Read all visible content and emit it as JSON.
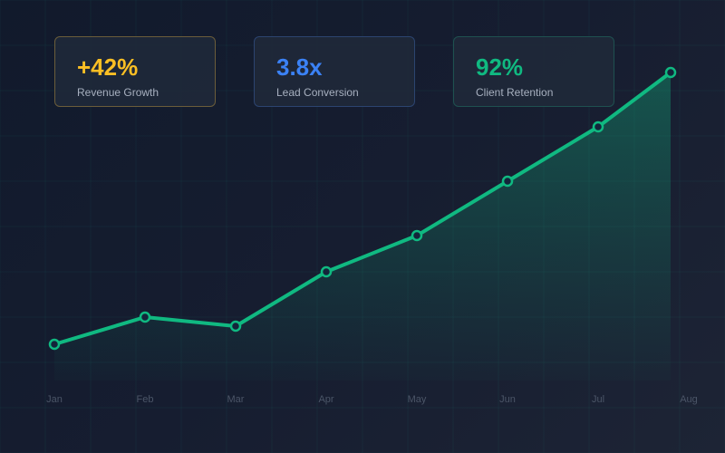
{
  "cards": [
    {
      "value": "+42%",
      "label": "Revenue Growth",
      "color": "#fbbf24",
      "border": "#6b5d3a"
    },
    {
      "value": "3.8x",
      "label": "Lead Conversion",
      "color": "#3b82f6",
      "border": "#2c4470"
    },
    {
      "value": "92%",
      "label": "Client Retention",
      "color": "#10b981",
      "border": "#1f5150"
    }
  ],
  "chart_data": {
    "type": "area",
    "title": "",
    "xlabel": "",
    "ylabel": "",
    "categories": [
      "Jan",
      "Feb",
      "Mar",
      "Apr",
      "May",
      "Jun",
      "Jul",
      "Aug"
    ],
    "values": [
      20,
      35,
      30,
      60,
      80,
      110,
      140,
      170
    ],
    "ylim": [
      0,
      180
    ],
    "grid": true,
    "line_color": "#10b981"
  }
}
